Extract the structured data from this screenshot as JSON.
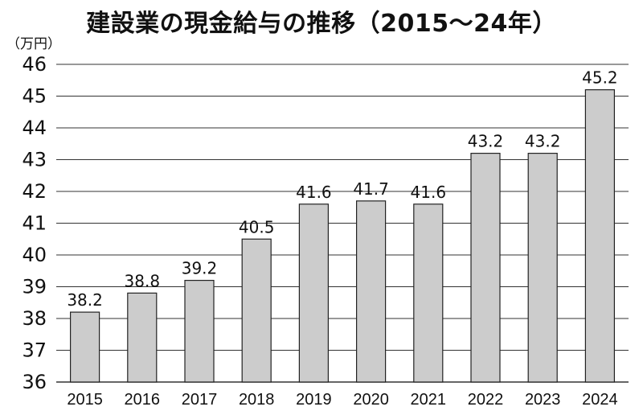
{
  "chart_data": {
    "type": "bar",
    "title": "建設業の現金給与の推移（2015〜24年）",
    "unit_label": "（万円）",
    "categories": [
      "2015",
      "2016",
      "2017",
      "2018",
      "2019",
      "2020",
      "2021",
      "2022",
      "2023",
      "2024"
    ],
    "values": [
      38.2,
      38.8,
      39.2,
      40.5,
      41.6,
      41.7,
      41.6,
      43.2,
      43.2,
      45.2
    ],
    "value_labels": [
      "38.2",
      "38.8",
      "39.2",
      "40.5",
      "41.6",
      "41.7",
      "41.6",
      "43.2",
      "43.2",
      "45.2"
    ],
    "yticks": [
      "36",
      "37",
      "38",
      "39",
      "40",
      "41",
      "42",
      "43",
      "44",
      "45",
      "46"
    ],
    "ylim": [
      36,
      46
    ],
    "grid": true,
    "legend": "none",
    "colors": {
      "bar_fill": "#cccccc",
      "bar_stroke": "#222222",
      "grid": "#333333"
    }
  }
}
